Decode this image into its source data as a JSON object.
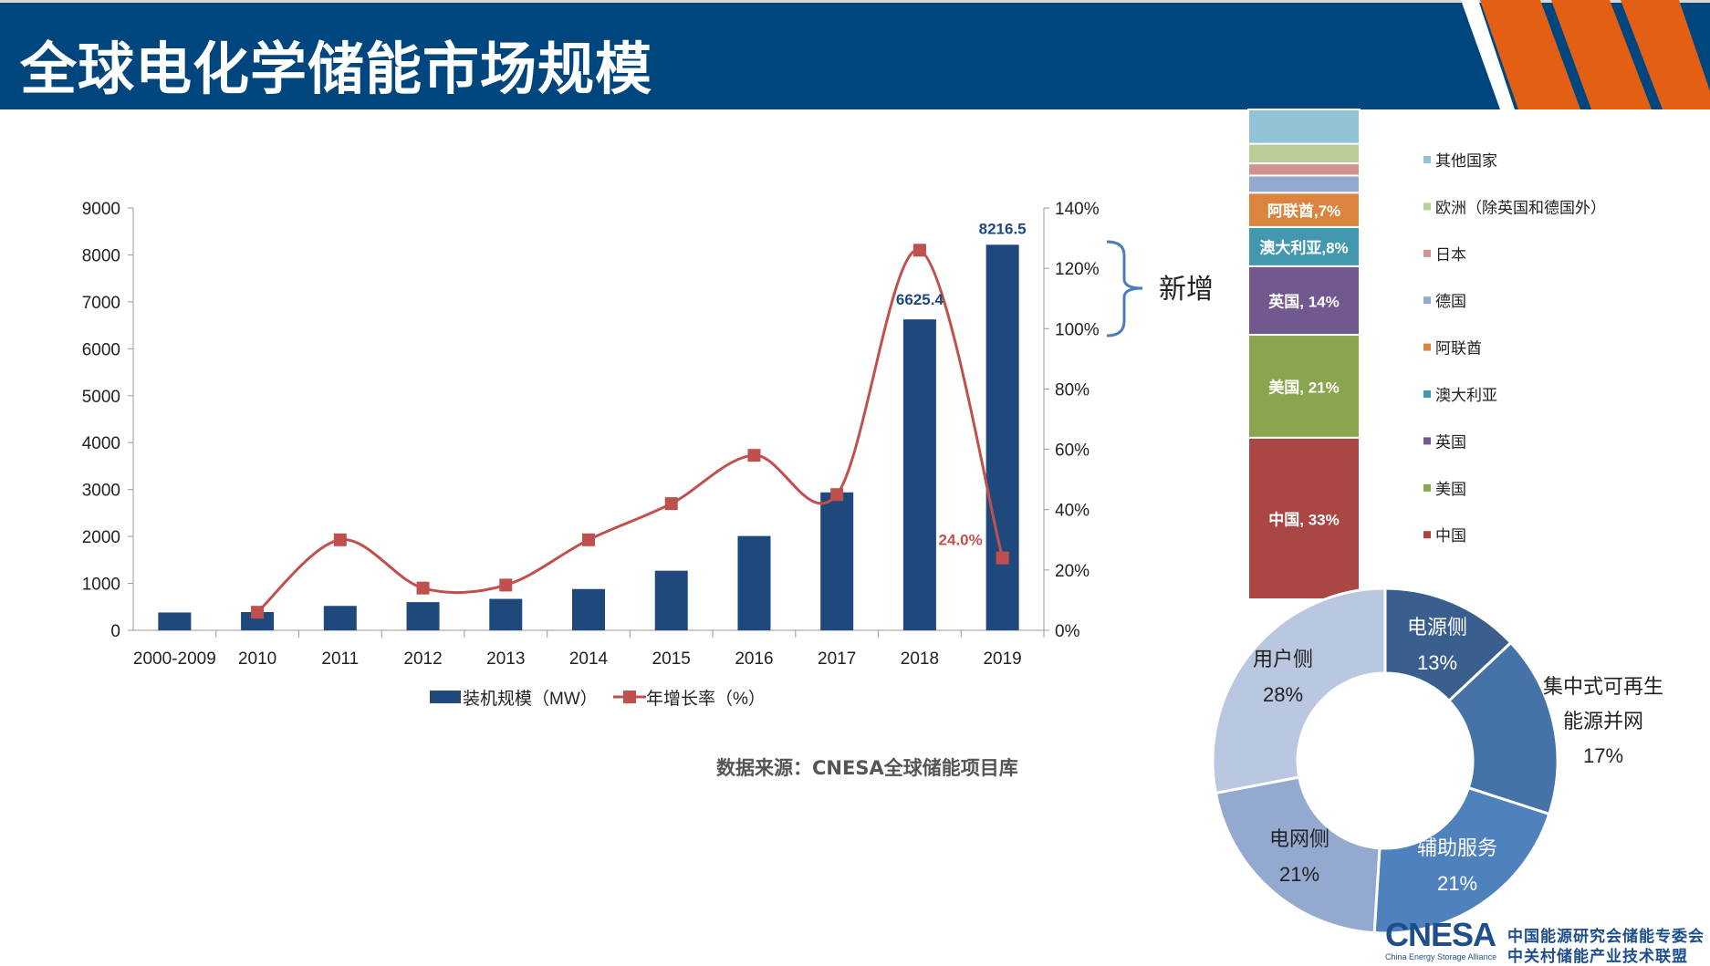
{
  "header": {
    "title": "全球电化学储能市场规模"
  },
  "source_note": "数据来源：CNESA全球储能项目库",
  "bracket_label": "新增",
  "logo": {
    "mark": "CNESA",
    "subtitle": "China Energy Storage Alliance",
    "line1": "中国能源研究会储能专委会",
    "line2": "中关村储能产业技术联盟"
  },
  "colors": {
    "header": "#00467e",
    "stripe": "#e35f14",
    "bar": "#1f497d",
    "line": "#c0504d"
  },
  "chart_data": [
    {
      "type": "bar+line",
      "categories": [
        "2000-2009",
        "2010",
        "2011",
        "2012",
        "2013",
        "2014",
        "2015",
        "2016",
        "2017",
        "2018",
        "2019"
      ],
      "series": [
        {
          "name": "装机规模（MW）",
          "type": "bar",
          "axis": "left",
          "values": [
            380,
            390,
            520,
            600,
            670,
            880,
            1270,
            2010,
            2940,
            6625.4,
            8216.5
          ]
        },
        {
          "name": "年增长率（%）",
          "type": "line",
          "axis": "right",
          "values": [
            null,
            6,
            30,
            14,
            15,
            30,
            42,
            58,
            45,
            126,
            24
          ]
        }
      ],
      "data_labels": [
        {
          "category": "2018",
          "series": "装机规模（MW）",
          "text": "6625.4"
        },
        {
          "category": "2019",
          "series": "装机规模（MW）",
          "text": "8216.5"
        },
        {
          "category": "2019",
          "series": "年增长率（%）",
          "text": "24.0%"
        }
      ],
      "yleft": {
        "min": 0,
        "max": 9000,
        "ticks": [
          "0",
          "1000",
          "2000",
          "3000",
          "4000",
          "5000",
          "6000",
          "7000",
          "8000",
          "9000"
        ]
      },
      "yright": {
        "min": 0,
        "max": 140,
        "ticks": [
          "0%",
          "20%",
          "40%",
          "60%",
          "80%",
          "100%",
          "120%",
          "140%"
        ]
      },
      "legend": "bottom"
    },
    {
      "type": "stacked-bar",
      "segments": [
        {
          "name": "中国",
          "value": 33,
          "label": "中国, 33%",
          "color": "#aa4643"
        },
        {
          "name": "美国",
          "value": 21,
          "label": "美国, 21%",
          "color": "#89a54e"
        },
        {
          "name": "英国",
          "value": 14,
          "label": "英国, 14%",
          "color": "#71588f"
        },
        {
          "name": "澳大利亚",
          "value": 8,
          "label": "澳大利亚,8%",
          "color": "#4198af"
        },
        {
          "name": "阿联酋",
          "value": 7,
          "label": "阿联酋,7%",
          "color": "#db843d"
        },
        {
          "name": "德国",
          "value": 3.5,
          "label": "",
          "color": "#93a9cf"
        },
        {
          "name": "日本",
          "value": 2.5,
          "label": "",
          "color": "#d19392"
        },
        {
          "name": "欧洲（除英国和德国外）",
          "value": 4,
          "label": "",
          "color": "#b9cd96"
        },
        {
          "name": "其他国家",
          "value": 7,
          "label": "",
          "color": "#92c2d5"
        }
      ],
      "legend": "right"
    },
    {
      "type": "pie",
      "donut": true,
      "slices": [
        {
          "name": "电源侧",
          "value": 13,
          "label": "13%",
          "color": "#3a5f8f"
        },
        {
          "name": "集中式可再生能源并网",
          "line1": "集中式可再生",
          "line2": "能源并网",
          "value": 17,
          "label": "17%",
          "color": "#4572a7"
        },
        {
          "name": "辅助服务",
          "value": 21,
          "label": "21%",
          "color": "#4f81bd"
        },
        {
          "name": "电网侧",
          "value": 21,
          "label": "21%",
          "color": "#94a9d0"
        },
        {
          "name": "用户侧",
          "value": 28,
          "label": "28%",
          "color": "#b9c7e0"
        }
      ]
    }
  ]
}
